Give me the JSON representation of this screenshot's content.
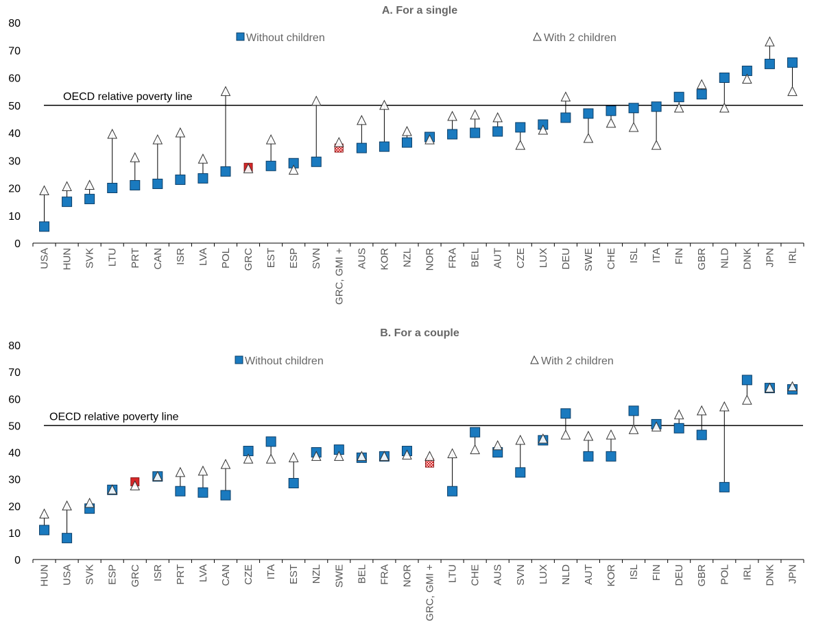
{
  "colors": {
    "square": "#1f77b4",
    "square_fill": "#1a7abf",
    "square_stroke": "#0b3d66",
    "highlight": "#d62728",
    "triangle_fill": "#ffffff",
    "triangle_stroke": "#333333",
    "line": "#000000"
  },
  "chart_data": [
    {
      "type": "scatter",
      "title": "A. For a single",
      "ylim": [
        0,
        80
      ],
      "yticks": [
        0,
        10,
        20,
        30,
        40,
        50,
        60,
        70,
        80
      ],
      "reference_line": {
        "value": 50,
        "label": "OECD relative poverty line"
      },
      "legend": [
        "Without children",
        "With 2 children"
      ],
      "categories": [
        "USA",
        "HUN",
        "SVK",
        "LTU",
        "PRT",
        "CAN",
        "ISR",
        "LVA",
        "POL",
        "GRC",
        "EST",
        "ESP",
        "SVN",
        "GRC, GMI +",
        "AUS",
        "KOR",
        "NZL",
        "NOR",
        "FRA",
        "BEL",
        "AUT",
        "CZE",
        "LUX",
        "DEU",
        "SWE",
        "CHE",
        "ISL",
        "ITA",
        "FIN",
        "GBR",
        "NLD",
        "DNK",
        "JPN",
        "IRL"
      ],
      "series": [
        {
          "name": "Without children",
          "values": [
            6,
            15,
            16,
            20,
            21,
            21.5,
            23,
            23.5,
            26,
            27.5,
            28,
            29,
            29.5,
            34.5,
            34.5,
            35,
            36.5,
            38.5,
            39.5,
            40,
            40.5,
            42,
            43,
            45.5,
            47,
            48,
            49,
            49.5,
            53,
            54,
            60,
            62.5,
            65,
            65.5
          ]
        },
        {
          "name": "With 2 children",
          "values": [
            19,
            20.5,
            21,
            39.5,
            31,
            37.5,
            40,
            30.5,
            55,
            27,
            37.5,
            26.5,
            51.5,
            36.5,
            44.5,
            50,
            40.5,
            37.5,
            46,
            46.5,
            45.5,
            35.5,
            41,
            53,
            38,
            43.5,
            42,
            35.5,
            49,
            57.5,
            49,
            59.5,
            73,
            55
          ]
        }
      ],
      "highlight": {
        "GRC": "solid",
        "GRC, GMI +": "hatched"
      }
    },
    {
      "type": "scatter",
      "title": "B. For a couple",
      "ylim": [
        0,
        80
      ],
      "yticks": [
        0,
        10,
        20,
        30,
        40,
        50,
        60,
        70,
        80
      ],
      "reference_line": {
        "value": 50,
        "label": "OECD relative poverty line"
      },
      "legend": [
        "Without children",
        "With 2 children"
      ],
      "categories": [
        "HUN",
        "USA",
        "SVK",
        "ESP",
        "GRC",
        "ISR",
        "PRT",
        "LVA",
        "CAN",
        "CZE",
        "ITA",
        "EST",
        "NZL",
        "SWE",
        "BEL",
        "FRA",
        "NOR",
        "GRC, GMI +",
        "LTU",
        "CHE",
        "AUS",
        "SVN",
        "LUX",
        "NLD",
        "AUT",
        "KOR",
        "ISL",
        "FIN",
        "DEU",
        "GBR",
        "POL",
        "IRL",
        "DNK",
        "JPN"
      ],
      "series": [
        {
          "name": "Without children",
          "values": [
            11,
            8,
            19,
            26,
            29,
            31,
            25.5,
            25,
            24,
            40.5,
            44,
            28.5,
            40,
            41,
            38,
            38.5,
            40.5,
            36,
            25.5,
            47.5,
            40,
            32.5,
            44.5,
            54.5,
            38.5,
            38.5,
            55.5,
            50.5,
            49,
            46.5,
            27,
            67,
            64,
            63.5
          ]
        },
        {
          "name": "With 2 children",
          "values": [
            17,
            20,
            21,
            26,
            27.5,
            31,
            32.5,
            33,
            35.5,
            37.5,
            37.5,
            38,
            38.5,
            38.5,
            38.5,
            38.5,
            39,
            38.5,
            39.5,
            41,
            42.5,
            44.5,
            45,
            46.5,
            46,
            46.5,
            48.5,
            49.5,
            54,
            55.5,
            57,
            59.5,
            64,
            64.5
          ]
        }
      ],
      "highlight": {
        "GRC": "solid",
        "GRC, GMI +": "hatched"
      }
    }
  ]
}
